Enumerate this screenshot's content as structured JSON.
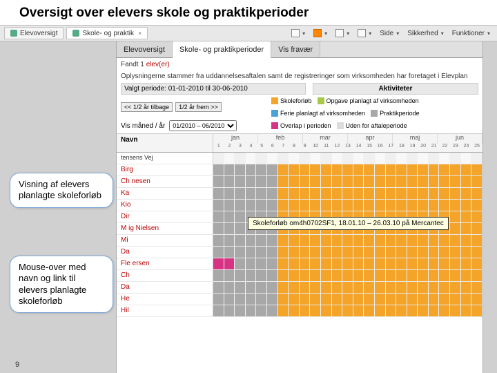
{
  "title": "Oversigt over elevers skole og praktikperioder",
  "page_number": "9",
  "browser": {
    "tabs": [
      {
        "label": "Elevoversigt",
        "active": false
      },
      {
        "label": "Skole- og praktik",
        "active": true
      }
    ],
    "toolbar": {
      "home": "",
      "feed": "",
      "mail": "",
      "print": "",
      "side": "Side",
      "sikkerhed": "Sikkerhed",
      "funktioner": "Funktioner"
    }
  },
  "app": {
    "tabs": [
      {
        "label": "Elevoversigt",
        "active": false
      },
      {
        "label": "Skole- og praktikperioder",
        "active": true
      },
      {
        "label": "Vis fravær",
        "active": false
      }
    ],
    "found_line_prefix": "Fandt 1",
    "found_line_red": "elev(er)",
    "subtitle": "Oplysningerne stammer fra uddannelsesaftalen samt de registreringer som virksomheden har foretaget i Elevplan",
    "periode_label": "Valgt periode: 01-01-2010 til 30-06-2010",
    "akt_header": "Aktiviteter",
    "nav_back": "<< 1/2 år tilbage",
    "nav_fwd": "1/2 år frem >>",
    "month_filter_label": "Vis måned / år",
    "month_filter_value": "01/2010 – 06/2010",
    "legend": [
      {
        "label": "Skoleforløb",
        "color": "#f4a428"
      },
      {
        "label": "Opgave planlagt af virksomheden",
        "color": "#a8c84a"
      },
      {
        "label": "Ferie planlagt af virksomheden",
        "color": "#4aa3d8"
      },
      {
        "label": "Praktikperiode",
        "color": "#a8a8a8"
      },
      {
        "label": "Overlap i perioden",
        "color": "#d63384"
      },
      {
        "label": "Uden for aftaleperiode",
        "color": "#dcdcdc"
      }
    ],
    "col_name_header": "Navn",
    "months": [
      "jan",
      "feb",
      "mar",
      "apr",
      "maj",
      "jun"
    ],
    "weeks": [
      "1",
      "2",
      "3",
      "4",
      "5",
      "6",
      "7",
      "8",
      "9",
      "10",
      "11",
      "12",
      "13",
      "14",
      "15",
      "16",
      "17",
      "18",
      "19",
      "20",
      "21",
      "22",
      "23",
      "24",
      "25"
    ],
    "colors": {
      "school": "#f4a428",
      "practice": "#a8a8a8",
      "overlap": "#d63384",
      "outside": "#dcdcdc",
      "task": "#a8c84a",
      "vacation": "#4aa3d8"
    },
    "rows": [
      {
        "name": "",
        "pattern": "address"
      },
      {
        "name": "Birg",
        "pattern": "p6s"
      },
      {
        "name": "Ch           nesen",
        "pattern": "p6s"
      },
      {
        "name": "Ka",
        "pattern": "p6s"
      },
      {
        "name": "Kio",
        "pattern": "p6s"
      },
      {
        "name": "Dir",
        "pattern": "p6s"
      },
      {
        "name": "M         ig Nielsen",
        "pattern": "p6s"
      },
      {
        "name": "Mi",
        "pattern": "p6s"
      },
      {
        "name": "Da",
        "pattern": "p6s"
      },
      {
        "name": "Fle         ersen",
        "pattern": "ov6s"
      },
      {
        "name": "Ch",
        "pattern": "p6s"
      },
      {
        "name": "Da",
        "pattern": "p6s"
      },
      {
        "name": "He",
        "pattern": "p6s"
      },
      {
        "name": "Hil",
        "pattern": "p6s"
      }
    ],
    "address_text": "tensens Vej",
    "tooltip_text": "Skoleforløb  om4h0702SF1, 18.01.10 – 26.03.10 på Mercantec"
  },
  "callouts": {
    "c1": "Visning af elevers planlagte skoleforløb",
    "c2": "Mouse-over med navn og link til elevers planlagte skoleforløb"
  }
}
